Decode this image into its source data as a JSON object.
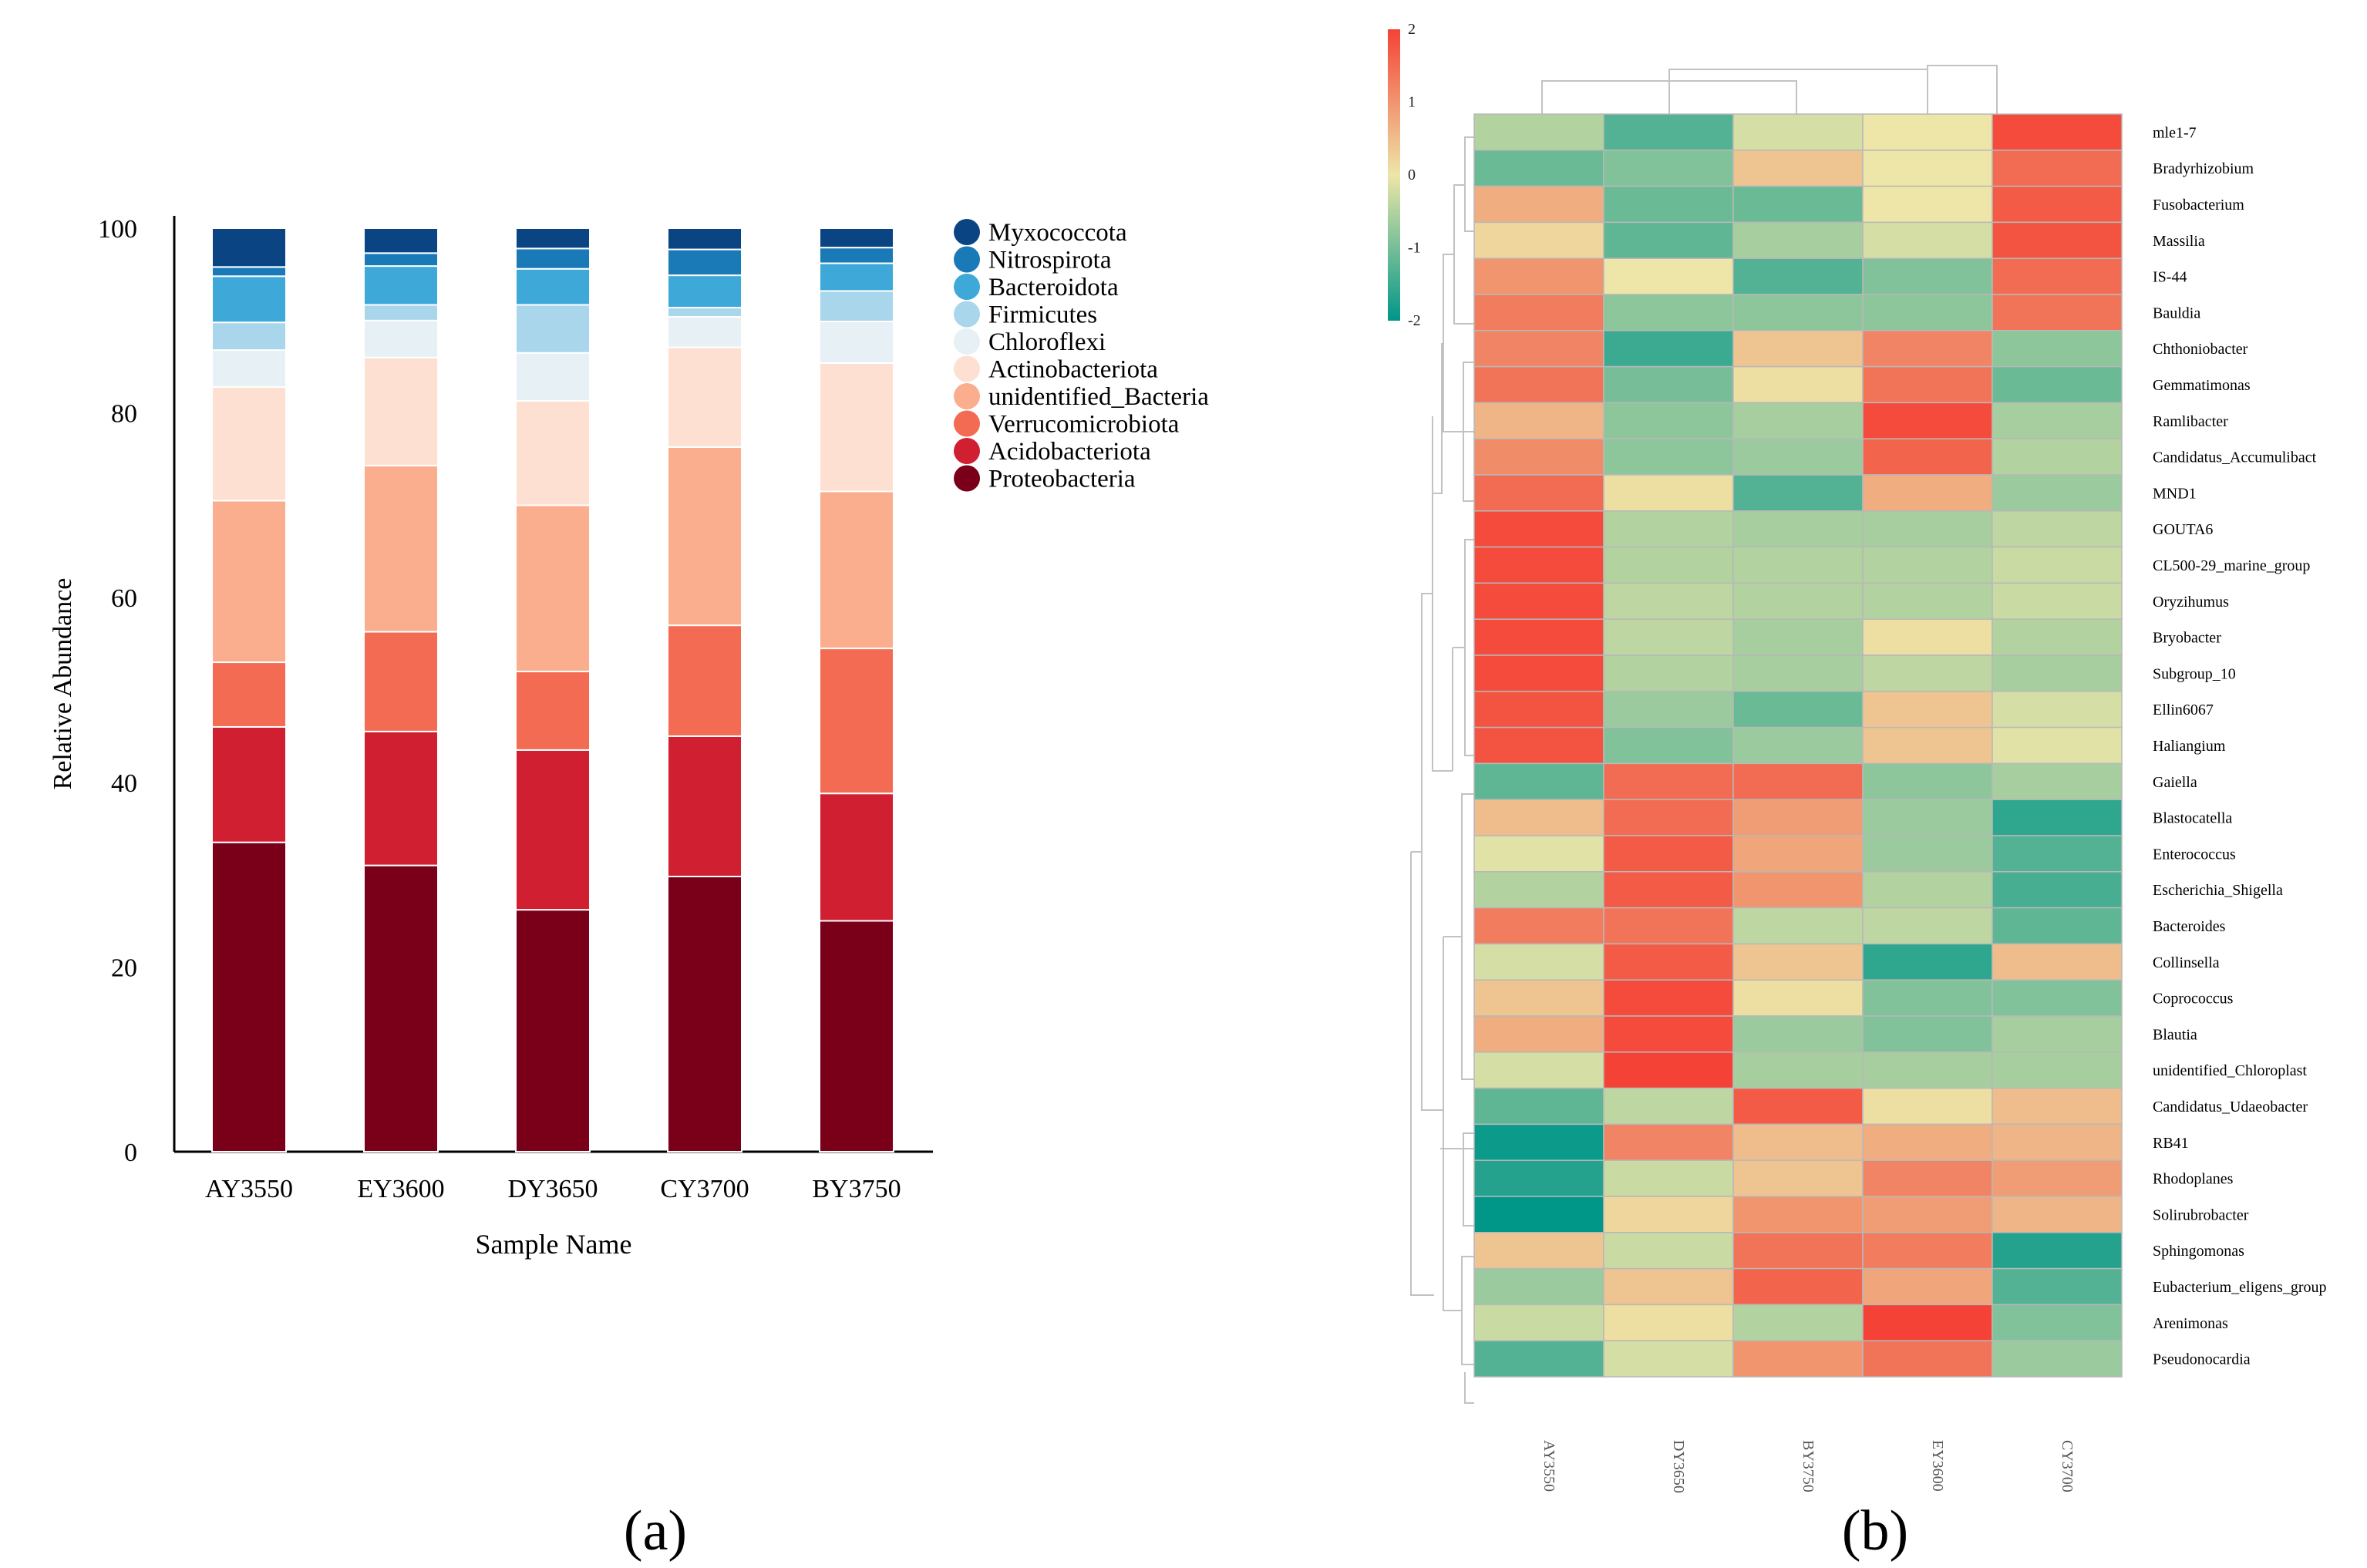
{
  "chart_data": [
    {
      "type": "bar",
      "stacked": true,
      "panel_label": "(a)",
      "xlabel": "Sample Name",
      "ylabel": "Relative Abundance",
      "ylim": [
        0,
        100
      ],
      "yticks": [
        "0",
        "20",
        "40",
        "60",
        "80",
        "100"
      ],
      "legend_position": "right",
      "categories": [
        "AY3550",
        "EY3600",
        "DY3650",
        "CY3700",
        "BY3750"
      ],
      "series": [
        {
          "name": "Proteobacteria",
          "color": "#7a0019",
          "values": [
            33.5,
            31.0,
            26.2,
            29.8,
            25.0
          ]
        },
        {
          "name": "Acidobacteriota",
          "color": "#d01f30",
          "values": [
            12.5,
            14.5,
            17.3,
            15.2,
            13.8
          ]
        },
        {
          "name": "Verrucomicrobiota",
          "color": "#f26b52",
          "values": [
            7.0,
            10.8,
            8.5,
            12.0,
            15.7
          ]
        },
        {
          "name": "unidentified_Bacteria",
          "color": "#fbae8e",
          "values": [
            17.5,
            18.0,
            18.0,
            19.3,
            17.0
          ]
        },
        {
          "name": "Actinobacteriota",
          "color": "#fde0d2",
          "values": [
            12.3,
            11.7,
            11.3,
            10.8,
            13.9
          ]
        },
        {
          "name": "Chloroflexi",
          "color": "#e6f0f5",
          "values": [
            4.0,
            4.0,
            5.2,
            3.3,
            4.5
          ]
        },
        {
          "name": "Firmicutes",
          "color": "#a9d6eb",
          "values": [
            3.0,
            1.7,
            5.2,
            1.0,
            3.3
          ]
        },
        {
          "name": "Bacteroidota",
          "color": "#3ea8d8",
          "values": [
            5.0,
            4.2,
            3.9,
            3.5,
            3.0
          ]
        },
        {
          "name": "Nitrospirota",
          "color": "#1a7ab8",
          "values": [
            1.0,
            1.4,
            2.2,
            2.8,
            1.7
          ]
        },
        {
          "name": "Myxococcota",
          "color": "#0a4482",
          "values": [
            4.2,
            2.7,
            2.2,
            2.3,
            2.1
          ]
        }
      ],
      "legend_order": [
        "Myxococcota",
        "Nitrospirota",
        "Bacteroidota",
        "Firmicutes",
        "Chloroflexi",
        "Actinobacteriota",
        "unidentified_Bacteria",
        "Verrucomicrobiota",
        "Acidobacteriota",
        "Proteobacteria"
      ]
    },
    {
      "type": "heatmap",
      "panel_label": "(b)",
      "columns": [
        "AY3550",
        "DY3650",
        "BY3750",
        "EY3600",
        "CY3700"
      ],
      "rows": [
        "mle1-7",
        "Bradyrhizobium",
        "Fusobacterium",
        "Massilia",
        "IS-44",
        "Bauldia",
        "Chthoniobacter",
        "Gemmatimonas",
        "Ramlibacter",
        "Candidatus_Accumulibact",
        "MND1",
        "GOUTA6",
        "CL500-29_marine_group",
        "Oryzihumus",
        "Bryobacter",
        "Subgroup_10",
        "Ellin6067",
        "Haliangium",
        "Gaiella",
        "Blastocatella",
        "Enterococcus",
        "Escherichia_Shigella",
        "Bacteroides",
        "Collinsella",
        "Coprococcus",
        "Blautia",
        "unidentified_Chloroplast",
        "Candidatus_Udaeobacter",
        "RB41",
        "Rhodoplanes",
        "Solirubrobacter",
        "Sphingomonas",
        "Eubacterium_eligens_group",
        "Arenimonas",
        "Pseudonocardia"
      ],
      "values": [
        [
          -0.5,
          -1.3,
          -0.2,
          0.0,
          1.9
        ],
        [
          -1.1,
          -0.9,
          0.4,
          0.0,
          1.5
        ],
        [
          0.7,
          -1.1,
          -1.1,
          0.0,
          1.7
        ],
        [
          0.2,
          -1.2,
          -0.6,
          -0.2,
          1.8
        ],
        [
          1.0,
          0.0,
          -1.3,
          -0.9,
          1.5
        ],
        [
          1.3,
          -0.8,
          -0.8,
          -0.8,
          1.4
        ],
        [
          1.2,
          -1.5,
          0.4,
          1.2,
          -0.8
        ],
        [
          1.4,
          -1.0,
          0.1,
          1.4,
          -1.1
        ],
        [
          0.6,
          -0.8,
          -0.6,
          1.9,
          -0.6
        ],
        [
          1.1,
          -0.8,
          -0.7,
          1.6,
          -0.5
        ],
        [
          1.5,
          0.1,
          -1.3,
          0.7,
          -0.7
        ],
        [
          1.9,
          -0.5,
          -0.6,
          -0.6,
          -0.4
        ],
        [
          1.9,
          -0.5,
          -0.5,
          -0.5,
          -0.3
        ],
        [
          1.9,
          -0.4,
          -0.5,
          -0.5,
          -0.3
        ],
        [
          1.9,
          -0.4,
          -0.6,
          0.1,
          -0.5
        ],
        [
          1.9,
          -0.5,
          -0.6,
          -0.4,
          -0.6
        ],
        [
          1.8,
          -0.7,
          -1.1,
          0.4,
          -0.2
        ],
        [
          1.8,
          -0.9,
          -0.7,
          0.4,
          -0.1
        ],
        [
          -1.2,
          1.5,
          1.5,
          -0.8,
          -0.6
        ],
        [
          0.5,
          1.5,
          0.9,
          -0.7,
          -1.6
        ],
        [
          -0.1,
          1.7,
          0.8,
          -0.7,
          -1.3
        ],
        [
          -0.5,
          1.7,
          1.0,
          -0.5,
          -1.4
        ],
        [
          1.3,
          1.4,
          -0.4,
          -0.4,
          -1.2
        ],
        [
          -0.2,
          1.7,
          0.4,
          -1.6,
          0.5
        ],
        [
          0.4,
          1.9,
          0.1,
          -0.9,
          -0.9
        ],
        [
          0.7,
          1.9,
          -0.7,
          -0.9,
          -0.6
        ],
        [
          -0.2,
          2.0,
          -0.6,
          -0.6,
          -0.6
        ],
        [
          -1.2,
          -0.4,
          1.7,
          0.1,
          0.5
        ],
        [
          -1.9,
          1.2,
          0.5,
          0.7,
          0.6
        ],
        [
          -1.7,
          -0.3,
          0.4,
          1.2,
          0.9
        ],
        [
          -2.0,
          0.2,
          1.0,
          0.9,
          0.6
        ],
        [
          0.4,
          -0.3,
          1.4,
          1.3,
          -1.7
        ],
        [
          -0.7,
          0.4,
          1.6,
          0.8,
          -1.3
        ],
        [
          -0.3,
          0.1,
          -0.5,
          2.0,
          -0.9
        ],
        [
          -1.3,
          -0.2,
          1.0,
          1.4,
          -0.7
        ]
      ],
      "colorbar": {
        "min": -2,
        "max": 2,
        "ticks": [
          "2",
          "1",
          "0",
          "-1",
          "-2"
        ],
        "low_color": "#009688",
        "mid_color": "#ede6a8",
        "high_color": "#f44336"
      }
    }
  ]
}
